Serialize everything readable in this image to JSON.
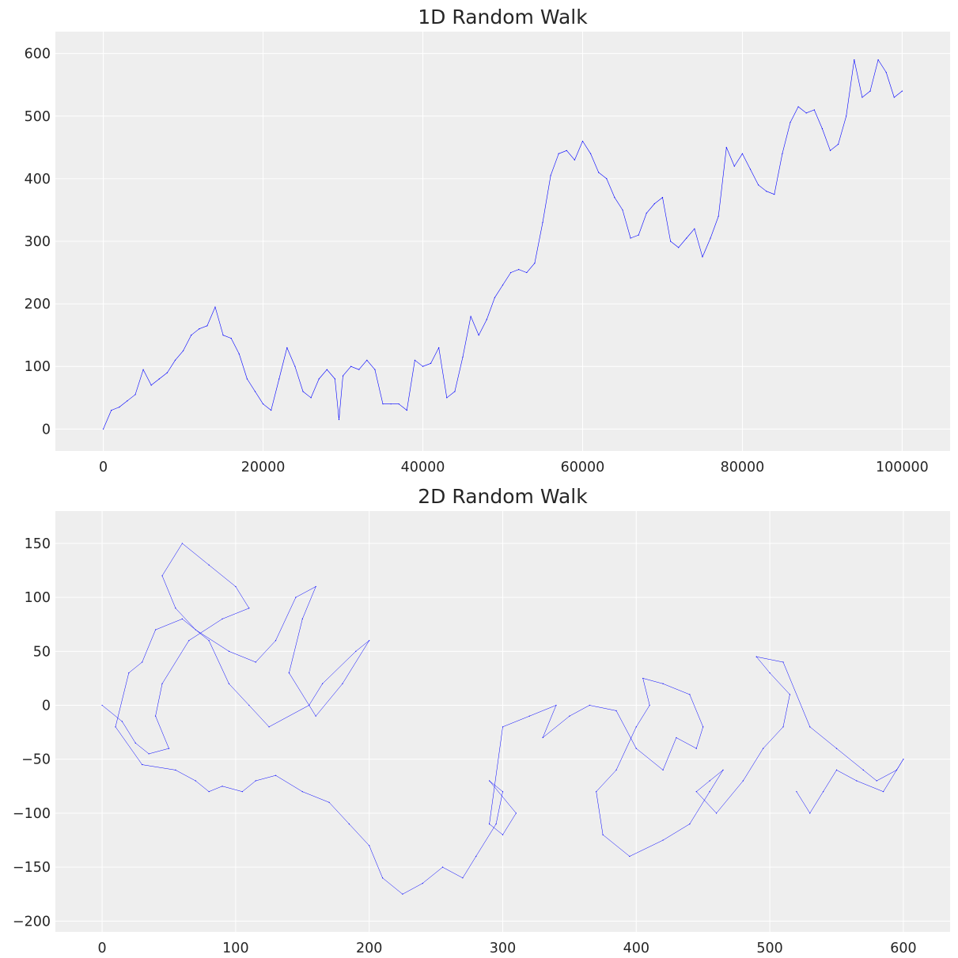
{
  "chart_data": [
    {
      "type": "line",
      "title": "1D Random Walk",
      "xlabel": "",
      "ylabel": "",
      "xlim": [
        -6000,
        106000
      ],
      "ylim": [
        -35,
        635
      ],
      "x_ticks": [
        0,
        20000,
        40000,
        60000,
        80000,
        100000
      ],
      "y_ticks": [
        0,
        100,
        200,
        300,
        400,
        500,
        600
      ],
      "x_tick_labels": [
        "0",
        "20000",
        "40000",
        "60000",
        "80000",
        "100000"
      ],
      "y_tick_labels": [
        "0",
        "100",
        "200",
        "300",
        "400",
        "500",
        "600"
      ],
      "grid": true,
      "legend": "none",
      "series": [
        {
          "color": "#0000ff",
          "line_width": 0.6,
          "x": [
            0,
            1000,
            2000,
            3000,
            4000,
            5000,
            6000,
            7000,
            8000,
            9000,
            10000,
            11000,
            12000,
            13000,
            14000,
            15000,
            16000,
            17000,
            18000,
            19000,
            20000,
            21000,
            22000,
            23000,
            24000,
            25000,
            26000,
            27000,
            28000,
            29000,
            29500,
            30000,
            31000,
            32000,
            33000,
            34000,
            35000,
            36000,
            37000,
            38000,
            39000,
            40000,
            41000,
            42000,
            43000,
            44000,
            45000,
            46000,
            47000,
            48000,
            49000,
            50000,
            51000,
            52000,
            53000,
            54000,
            55000,
            56000,
            57000,
            58000,
            59000,
            60000,
            61000,
            62000,
            63000,
            64000,
            65000,
            66000,
            67000,
            68000,
            69000,
            70000,
            71000,
            72000,
            73000,
            74000,
            75000,
            76000,
            77000,
            78000,
            79000,
            80000,
            81000,
            82000,
            83000,
            84000,
            85000,
            86000,
            87000,
            88000,
            89000,
            90000,
            91000,
            92000,
            93000,
            94000,
            95000,
            96000,
            97000,
            98000,
            99000,
            100000
          ],
          "y": [
            0,
            30,
            35,
            45,
            55,
            95,
            70,
            80,
            90,
            110,
            125,
            150,
            160,
            165,
            195,
            150,
            145,
            120,
            80,
            60,
            40,
            30,
            80,
            130,
            100,
            60,
            50,
            80,
            95,
            80,
            15,
            85,
            100,
            95,
            110,
            95,
            40,
            40,
            40,
            30,
            110,
            100,
            105,
            130,
            50,
            60,
            115,
            180,
            150,
            175,
            210,
            230,
            250,
            255,
            250,
            265,
            330,
            405,
            440,
            445,
            430,
            460,
            440,
            410,
            400,
            370,
            350,
            305,
            310,
            345,
            360,
            370,
            300,
            290,
            305,
            320,
            275,
            305,
            340,
            450,
            420,
            440,
            415,
            390,
            380,
            375,
            440,
            490,
            515,
            505,
            510,
            480,
            445,
            455,
            500,
            590,
            530,
            540,
            590,
            570,
            530,
            540
          ]
        }
      ]
    },
    {
      "type": "line",
      "title": "2D Random Walk",
      "xlabel": "",
      "ylabel": "",
      "xlim": [
        -35,
        635
      ],
      "ylim": [
        -210,
        180
      ],
      "x_ticks": [
        0,
        100,
        200,
        300,
        400,
        500,
        600
      ],
      "y_ticks": [
        -200,
        -150,
        -100,
        -50,
        0,
        50,
        100,
        150
      ],
      "x_tick_labels": [
        "0",
        "100",
        "200",
        "300",
        "400",
        "500",
        "600"
      ],
      "y_tick_labels": [
        "−200",
        "−150",
        "−100",
        "−50",
        "0",
        "50",
        "100",
        "150"
      ],
      "grid": true,
      "legend": "none",
      "series": [
        {
          "color": "#0000ff",
          "line_width": 0.5,
          "x": [
            0,
            15,
            25,
            35,
            50,
            40,
            45,
            65,
            90,
            110,
            100,
            80,
            60,
            45,
            55,
            70,
            95,
            115,
            130,
            145,
            160,
            150,
            140,
            160,
            180,
            200,
            190,
            165,
            155,
            125,
            110,
            95,
            80,
            60,
            40,
            30,
            20,
            10,
            30,
            55,
            70,
            80,
            90,
            105,
            115,
            130,
            150,
            170,
            185,
            200,
            210,
            225,
            240,
            255,
            270,
            280,
            295,
            300,
            290,
            310,
            300,
            290,
            300,
            320,
            340,
            330,
            350,
            365,
            385,
            400,
            420,
            430,
            445,
            450,
            440,
            420,
            405,
            410,
            400,
            385,
            370,
            375,
            395,
            420,
            440,
            455,
            465,
            455,
            445,
            460,
            480,
            495,
            510,
            515,
            500,
            490,
            510,
            530,
            550,
            570,
            580,
            595,
            600,
            585,
            565,
            550,
            540,
            530,
            520
          ],
          "y": [
            0,
            -15,
            -35,
            -45,
            -40,
            -10,
            20,
            60,
            80,
            90,
            110,
            130,
            150,
            120,
            90,
            70,
            50,
            40,
            60,
            100,
            110,
            80,
            30,
            -10,
            20,
            60,
            50,
            20,
            0,
            -20,
            0,
            20,
            60,
            80,
            70,
            40,
            30,
            -20,
            -55,
            -60,
            -70,
            -80,
            -75,
            -80,
            -70,
            -65,
            -80,
            -90,
            -110,
            -130,
            -160,
            -175,
            -165,
            -150,
            -160,
            -140,
            -110,
            -80,
            -70,
            -100,
            -120,
            -110,
            -20,
            -10,
            0,
            -30,
            -10,
            0,
            -5,
            -40,
            -60,
            -30,
            -40,
            -20,
            10,
            20,
            25,
            0,
            -20,
            -60,
            -80,
            -120,
            -140,
            -125,
            -110,
            -80,
            -60,
            -70,
            -80,
            -100,
            -70,
            -40,
            -20,
            10,
            30,
            45,
            40,
            -20,
            -40,
            -60,
            -70,
            -60,
            -50,
            -80,
            -70,
            -60,
            -80,
            -100,
            -80
          ]
        }
      ]
    }
  ]
}
